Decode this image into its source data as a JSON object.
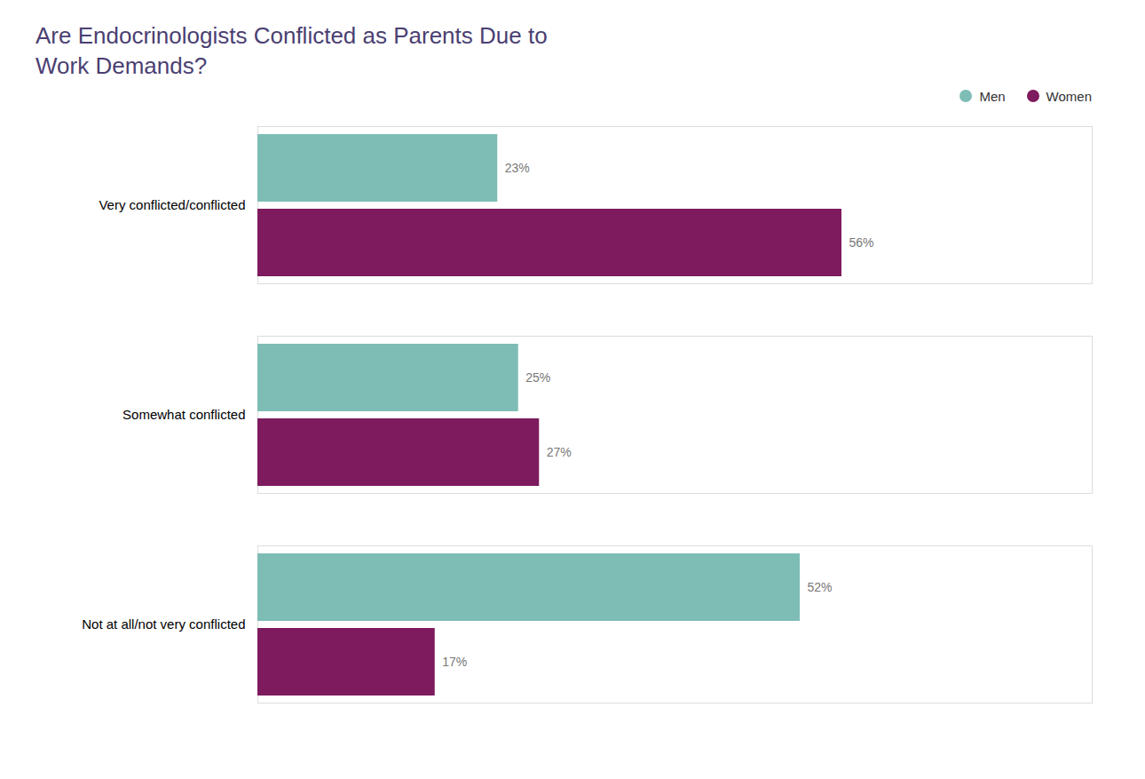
{
  "chart_data": {
    "type": "bar",
    "orientation": "horizontal",
    "title": "Are Endocrinologists Conflicted as Parents Due to\nWork Demands?",
    "categories": [
      "Very conflicted/conflicted",
      "Somewhat conflicted",
      "Not at all/not very conflicted"
    ],
    "series": [
      {
        "name": "Men",
        "color": "#7DBDB5",
        "values": [
          23,
          25,
          52
        ],
        "value_labels": [
          "23%",
          "25%",
          "52%"
        ]
      },
      {
        "name": "Women",
        "color": "#7D1B5E",
        "values": [
          56,
          27,
          17
        ],
        "value_labels": [
          "56%",
          "27%",
          "17%"
        ]
      }
    ],
    "xlim": [
      0,
      80
    ],
    "data_labels": true,
    "tick_labels": "y",
    "grid": false,
    "legend": "upper right"
  }
}
